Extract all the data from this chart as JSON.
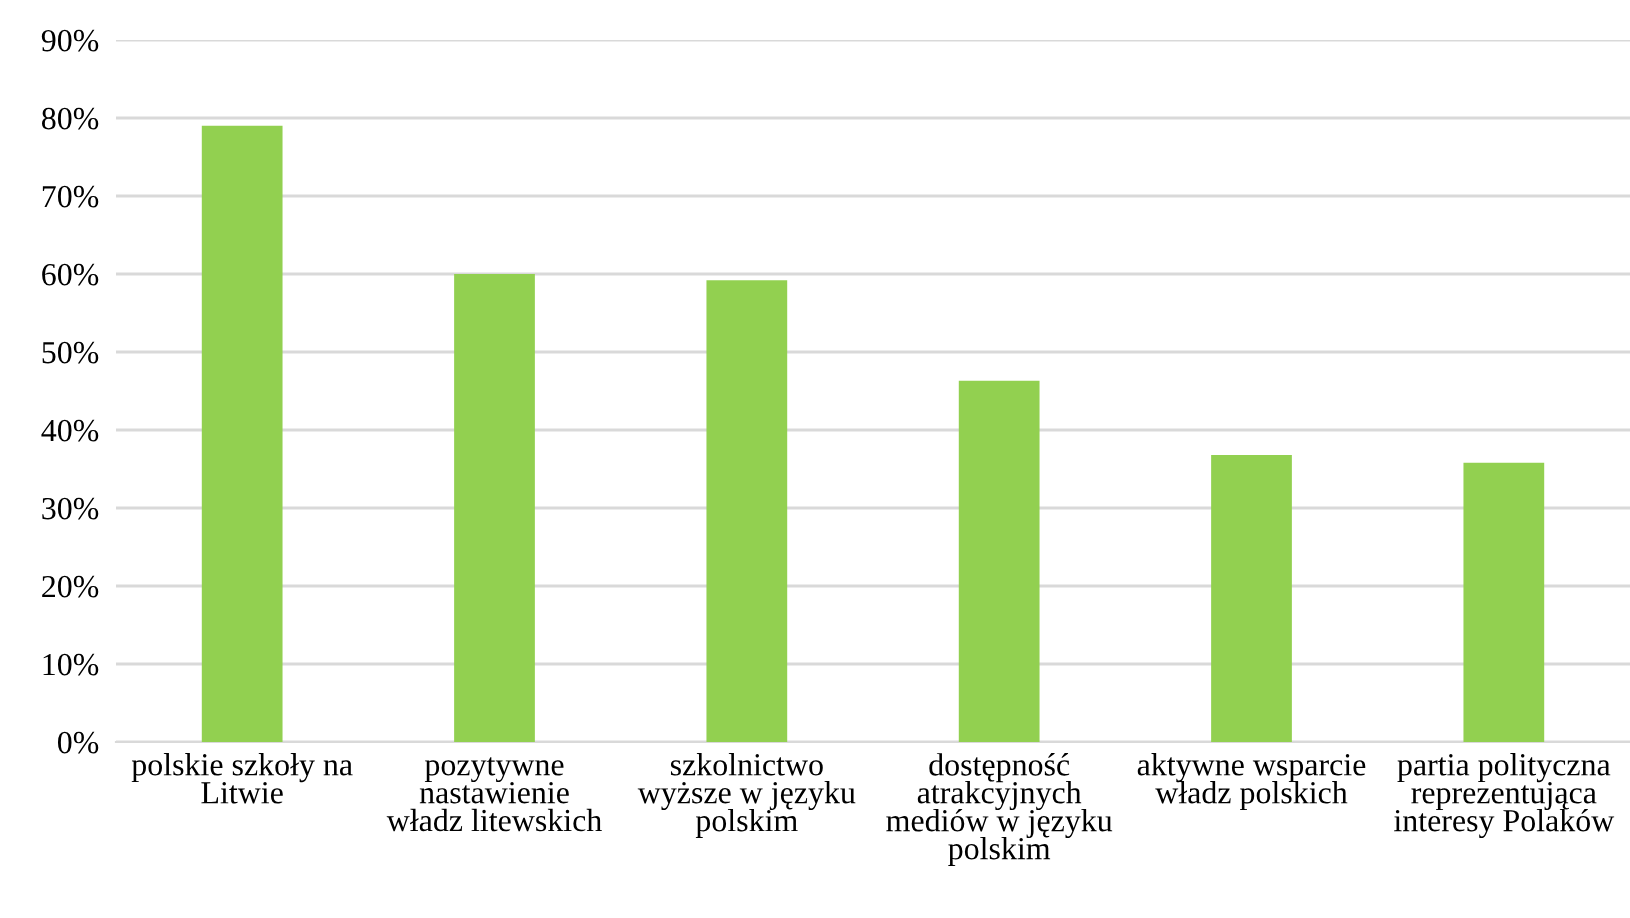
{
  "chart_data": {
    "type": "bar",
    "categories": [
      "polskie szkoły na\nLitwie",
      "pozytywne\nnastawienie\nwładz litewskich",
      "szkolnictwo\nwyższe w języku\npolskim",
      "dostępność\natrakcyjnych\nmediów w języku\npolskim",
      "aktywne wsparcie\nwładz polskich",
      "partia polityczna\nreprezentująca\ninteresy Polaków"
    ],
    "values": [
      79,
      60,
      59.2,
      46.3,
      36.8,
      35.8
    ],
    "color": "#92d050",
    "ylim": [
      0,
      90
    ],
    "yticks": [
      {
        "value": 0,
        "label": "0%"
      },
      {
        "value": 10,
        "label": "10%"
      },
      {
        "value": 20,
        "label": "20%"
      },
      {
        "value": 30,
        "label": "30%"
      },
      {
        "value": 40,
        "label": "40%"
      },
      {
        "value": 50,
        "label": "50%"
      },
      {
        "value": 60,
        "label": "60%"
      },
      {
        "value": 70,
        "label": "70%"
      },
      {
        "value": 80,
        "label": "80%"
      },
      {
        "value": 90,
        "label": "90%"
      }
    ],
    "grid": "y",
    "legend": false
  }
}
